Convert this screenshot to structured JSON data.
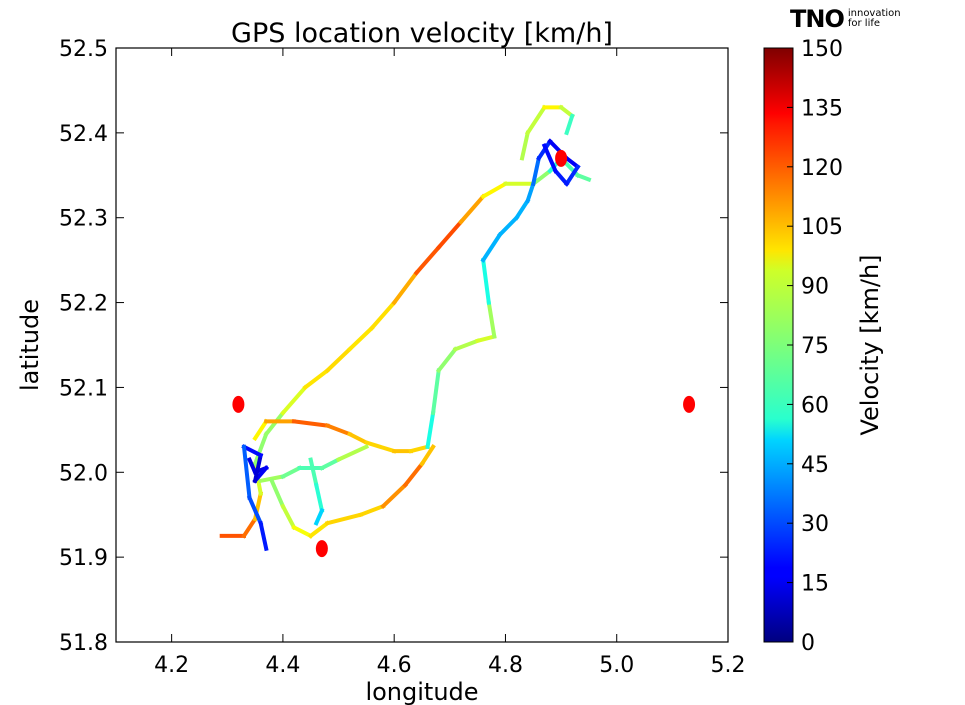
{
  "logo": {
    "mark": "TNO",
    "tagline_1": "innovation",
    "tagline_2": "for life"
  },
  "chart_data": {
    "type": "scatter",
    "title": "GPS location velocity [km/h]",
    "xlabel": "longitude",
    "ylabel": "latitude",
    "xlim": [
      4.1,
      5.2
    ],
    "ylim": [
      51.8,
      52.5
    ],
    "xticks": [
      "4.2",
      "4.4",
      "4.6",
      "4.8",
      "5.0",
      "5.2"
    ],
    "yticks": [
      "51.8",
      "51.9",
      "52.0",
      "52.1",
      "52.2",
      "52.3",
      "52.4",
      "52.5"
    ],
    "grid": false,
    "colorbar": {
      "label": "Velocity [km/h]",
      "range": [
        0,
        150
      ],
      "ticks": [
        "0",
        "15",
        "30",
        "45",
        "60",
        "75",
        "90",
        "105",
        "120",
        "135",
        "150"
      ],
      "colormap": "jet"
    },
    "markers": [
      {
        "x": 4.32,
        "y": 52.08,
        "color": "#ff0000"
      },
      {
        "x": 4.47,
        "y": 51.91,
        "color": "#ff0000"
      },
      {
        "x": 4.9,
        "y": 52.37,
        "color": "#ff0000"
      },
      {
        "x": 5.13,
        "y": 52.08,
        "color": "#ff0000"
      }
    ],
    "tracks": [
      {
        "points": [
          [
            4.29,
            51.925,
            118
          ],
          [
            4.33,
            51.925,
            120
          ],
          [
            4.35,
            51.945,
            110
          ],
          [
            4.36,
            51.975,
            95
          ],
          [
            4.35,
            52.01,
            80
          ],
          [
            4.37,
            52.045,
            75
          ],
          [
            4.4,
            52.07,
            82
          ],
          [
            4.44,
            52.1,
            95
          ],
          [
            4.48,
            52.12,
            100
          ],
          [
            4.52,
            52.145,
            98
          ],
          [
            4.56,
            52.17,
            97
          ],
          [
            4.6,
            52.2,
            100
          ],
          [
            4.64,
            52.235,
            112
          ],
          [
            4.68,
            52.265,
            125
          ],
          [
            4.72,
            52.295,
            115
          ],
          [
            4.76,
            52.325,
            100
          ],
          [
            4.8,
            52.34,
            90
          ],
          [
            4.85,
            52.34,
            85
          ],
          [
            4.88,
            52.355,
            70
          ],
          [
            4.9,
            52.37,
            55
          ],
          [
            4.93,
            52.35,
            80
          ],
          [
            4.95,
            52.345,
            60
          ]
        ]
      },
      {
        "points": [
          [
            4.35,
            52.04,
            90
          ],
          [
            4.37,
            52.06,
            100
          ],
          [
            4.42,
            52.06,
            115
          ],
          [
            4.48,
            52.055,
            120
          ],
          [
            4.52,
            52.045,
            105
          ],
          [
            4.55,
            52.035,
            100
          ],
          [
            4.6,
            52.025,
            100
          ],
          [
            4.63,
            52.025,
            105
          ],
          [
            4.66,
            52.03,
            95
          ]
        ]
      },
      {
        "points": [
          [
            4.36,
            51.99,
            85
          ],
          [
            4.4,
            51.995,
            75
          ],
          [
            4.43,
            52.005,
            70
          ],
          [
            4.47,
            52.005,
            65
          ],
          [
            4.5,
            52.015,
            75
          ],
          [
            4.55,
            52.03,
            90
          ]
        ]
      },
      {
        "points": [
          [
            4.38,
            51.99,
            75
          ],
          [
            4.4,
            51.96,
            80
          ],
          [
            4.42,
            51.935,
            90
          ],
          [
            4.45,
            51.925,
            95
          ],
          [
            4.48,
            51.94,
            100
          ],
          [
            4.54,
            51.95,
            100
          ],
          [
            4.58,
            51.96,
            100
          ],
          [
            4.62,
            51.985,
            120
          ],
          [
            4.65,
            52.01,
            110
          ],
          [
            4.67,
            52.03,
            95
          ]
        ]
      },
      {
        "points": [
          [
            4.45,
            52.015,
            70
          ],
          [
            4.46,
            51.985,
            65
          ],
          [
            4.47,
            51.955,
            60
          ],
          [
            4.46,
            51.94,
            40
          ]
        ]
      },
      {
        "points": [
          [
            4.34,
            52.015,
            20
          ],
          [
            4.35,
            52.0,
            10
          ],
          [
            4.37,
            52.005,
            20
          ],
          [
            4.35,
            51.99,
            15
          ],
          [
            4.36,
            52.02,
            10
          ],
          [
            4.33,
            52.03,
            30
          ],
          [
            4.34,
            51.97,
            35
          ],
          [
            4.36,
            51.94,
            25
          ],
          [
            4.37,
            51.91,
            20
          ]
        ]
      },
      {
        "points": [
          [
            4.66,
            52.03,
            55
          ],
          [
            4.67,
            52.07,
            65
          ],
          [
            4.68,
            52.12,
            75
          ],
          [
            4.71,
            52.145,
            80
          ],
          [
            4.75,
            52.155,
            85
          ],
          [
            4.78,
            52.16,
            90
          ],
          [
            4.77,
            52.2,
            70
          ],
          [
            4.76,
            52.25,
            50
          ],
          [
            4.79,
            52.28,
            40
          ],
          [
            4.82,
            52.3,
            50
          ],
          [
            4.84,
            52.32,
            40
          ],
          [
            4.85,
            52.34,
            45
          ]
        ]
      },
      {
        "points": [
          [
            4.85,
            52.34,
            40
          ],
          [
            4.86,
            52.37,
            30
          ],
          [
            4.88,
            52.39,
            20
          ],
          [
            4.91,
            52.37,
            15
          ],
          [
            4.93,
            52.36,
            20
          ],
          [
            4.91,
            52.34,
            30
          ],
          [
            4.89,
            52.355,
            15
          ],
          [
            4.87,
            52.385,
            25
          ]
        ]
      },
      {
        "points": [
          [
            4.83,
            52.37,
            85
          ],
          [
            4.84,
            52.4,
            80
          ],
          [
            4.87,
            52.43,
            90
          ],
          [
            4.9,
            52.43,
            100
          ],
          [
            4.92,
            52.42,
            70
          ],
          [
            4.91,
            52.4,
            60
          ]
        ]
      }
    ]
  }
}
